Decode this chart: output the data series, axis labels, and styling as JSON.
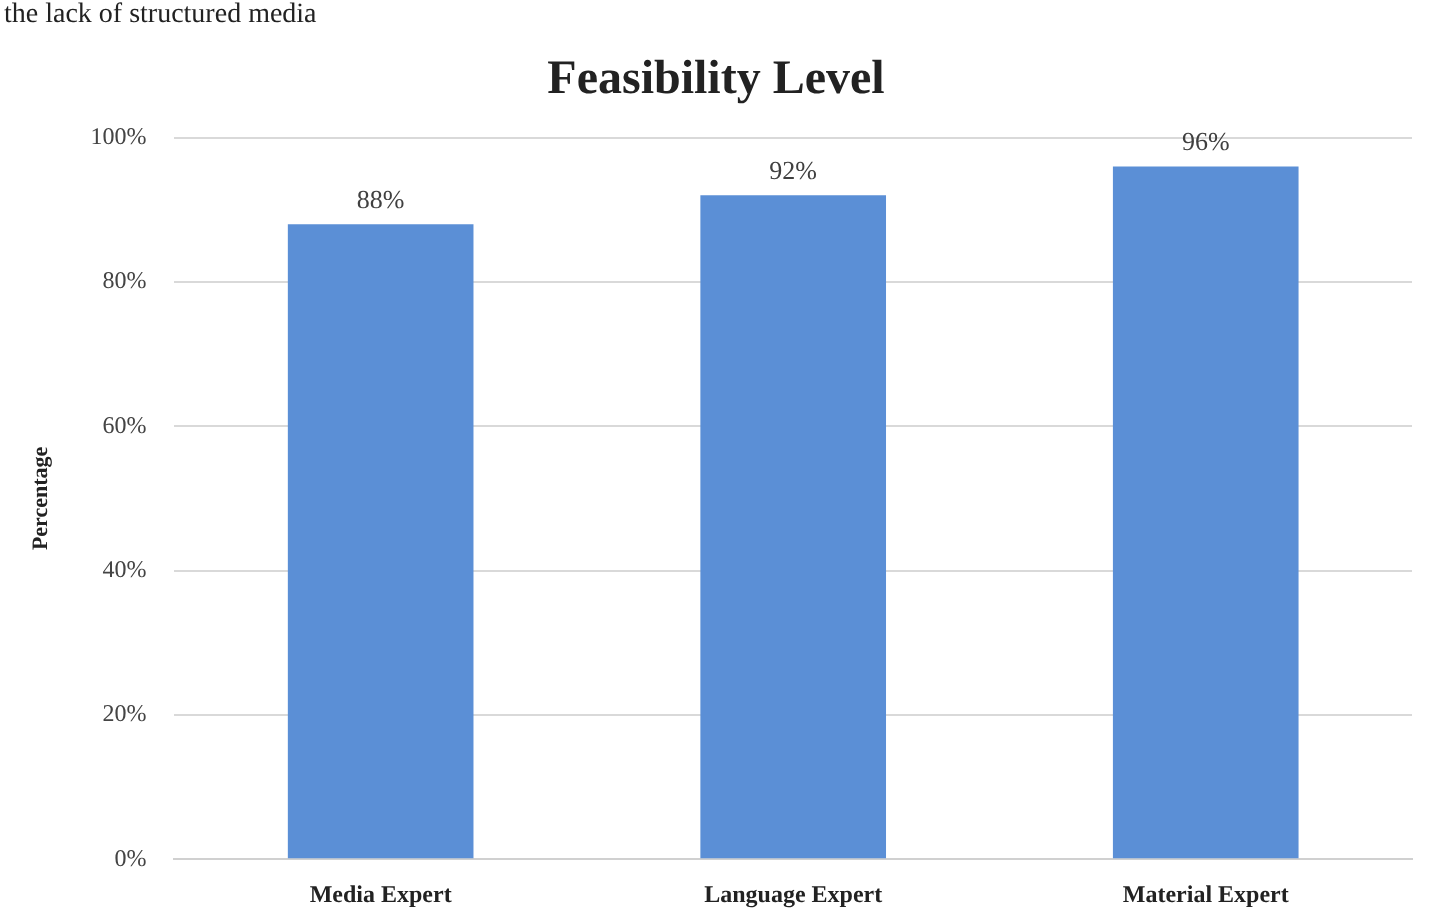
{
  "chart_data": {
    "type": "bar",
    "title": "Feasibility Level",
    "ylabel": "Percentage",
    "annotations": [
      "the lack of structured media"
    ],
    "categories": [
      "Media Expert",
      "Language Expert",
      "Material Expert"
    ],
    "values": [
      88,
      92,
      96
    ],
    "value_labels": [
      "88%",
      "92%",
      "96%"
    ],
    "color": "#5b8fd6",
    "ylim": [
      0,
      100
    ],
    "yticks": [
      {
        "value": 0,
        "label": "0%"
      },
      {
        "value": 20,
        "label": "20%"
      },
      {
        "value": 40,
        "label": "40%"
      },
      {
        "value": 60,
        "label": "60%"
      },
      {
        "value": 80,
        "label": "80%"
      },
      {
        "value": 100,
        "label": "100%"
      }
    ],
    "grid": "y",
    "legend": false
  }
}
